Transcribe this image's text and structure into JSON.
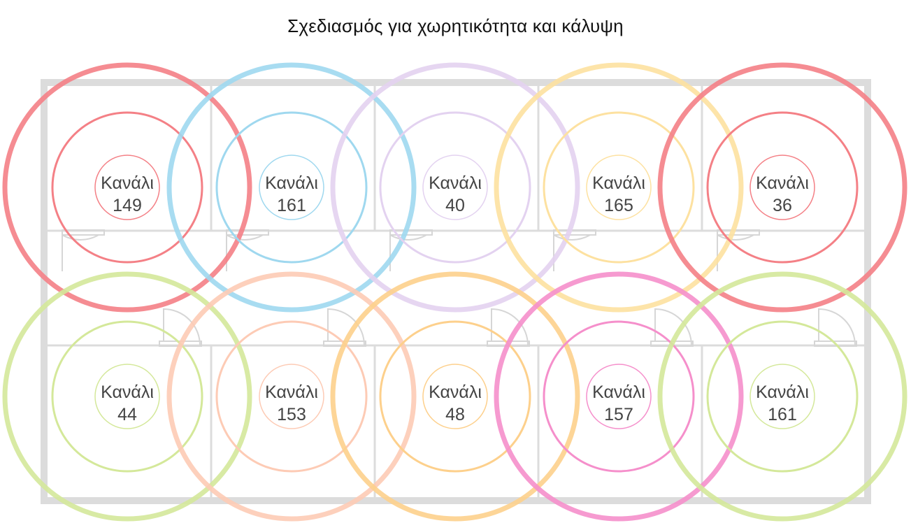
{
  "title": "Σχεδιασμός για χωρητικότητα και κάλυψη",
  "access_points": [
    {
      "label": "Κανάλι",
      "channel": "149",
      "color": "#f48086",
      "strong": true
    },
    {
      "label": "Κανάλι",
      "channel": "161",
      "color": "#9fd8ef",
      "strong": true
    },
    {
      "label": "Κανάλι",
      "channel": "40",
      "color": "#e3d2f0",
      "strong": true
    },
    {
      "label": "Κανάλι",
      "channel": "165",
      "color": "#fde1a0",
      "strong": true
    },
    {
      "label": "Κανάλι",
      "channel": "36",
      "color": "#f48086",
      "strong": true
    },
    {
      "label": "Κανάλι",
      "channel": "44",
      "color": "#d4e89a",
      "strong": true
    },
    {
      "label": "Κανάλι",
      "channel": "153",
      "color": "#fdcbb5",
      "strong": true
    },
    {
      "label": "Κανάλι",
      "channel": "48",
      "color": "#fdd08c",
      "strong": true
    },
    {
      "label": "Κανάλι",
      "channel": "157",
      "color": "#f58fcb",
      "strong": true
    },
    {
      "label": "Κανάλι",
      "channel": "161",
      "color": "#d4e89a",
      "strong": true
    }
  ]
}
